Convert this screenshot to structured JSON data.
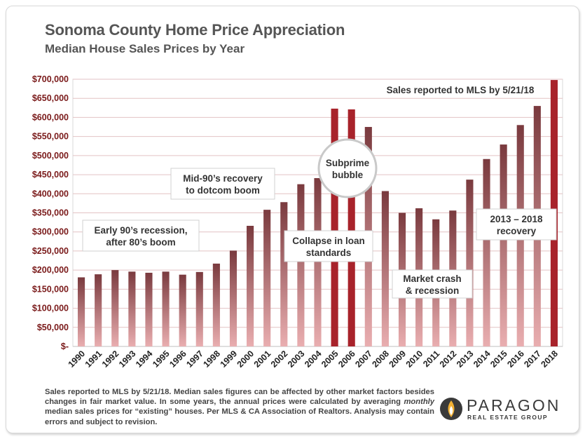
{
  "title": "Sonoma County Home Price Appreciation",
  "subtitle": "Median House Sales Prices by Year",
  "colors": {
    "bar_top": "#7a3a3e",
    "bar_bottom": "#e9aeb0",
    "highlight": "#a8232b",
    "grid": "#e3c2c4",
    "axis_text": "#7a1a1a"
  },
  "chart_data": {
    "type": "bar",
    "categories": [
      "1990",
      "1991",
      "1992",
      "1993",
      "1994",
      "1995",
      "1996",
      "1997",
      "1998",
      "1999",
      "2000",
      "2001",
      "2002",
      "2003",
      "2004",
      "2005",
      "2006",
      "2007",
      "2008",
      "2009",
      "2010",
      "2011",
      "2012",
      "2013",
      "2014",
      "2015",
      "2016",
      "2017",
      "2018"
    ],
    "values": [
      181000,
      189000,
      200000,
      196000,
      193000,
      196000,
      188000,
      195000,
      217000,
      251000,
      316000,
      358000,
      378000,
      425000,
      441000,
      623000,
      621000,
      575000,
      407000,
      350000,
      362000,
      333000,
      356000,
      437000,
      491000,
      529000,
      580000,
      630000,
      698000
    ],
    "highlighted": [
      "2005",
      "2006",
      "2018"
    ],
    "ylim": [
      0,
      700000
    ],
    "yticks": [
      0,
      50000,
      100000,
      150000,
      200000,
      250000,
      300000,
      350000,
      400000,
      450000,
      500000,
      550000,
      600000,
      650000,
      700000
    ],
    "ytick_labels": [
      "$-",
      "$50,000",
      "$100,000",
      "$150,000",
      "$200,000",
      "$250,000",
      "$300,000",
      "$350,000",
      "$400,000",
      "$450,000",
      "$500,000",
      "$550,000",
      "$600,000",
      "$650,000",
      "$700,000"
    ],
    "xlabel": "",
    "ylabel": "",
    "grid": true
  },
  "annotations": {
    "sales_note": "Sales reported to MLS by 5/21/18",
    "early_90s": [
      "Early 90’s recession,",
      "after 80’s boom"
    ],
    "mid_90s": [
      "Mid-90’s recovery",
      "to dotcom boom"
    ],
    "subprime": [
      "Subprime",
      "bubble"
    ],
    "collapse": [
      "Collapse in loan",
      "standards"
    ],
    "crash": [
      "Market crash",
      "& recession"
    ],
    "recovery": [
      "2013 – 2018",
      "recovery"
    ]
  },
  "footnote": {
    "before_italic": "Sales reported to MLS by 5/21/18. Median sales figures can be affected by other market factors besides changes in fair market value. In some years, the annual prices were calculated by averaging ",
    "italic": "monthly",
    "after_italic": " median sales prices for “existing” houses. Per MLS & CA Association of Realtors. Analysis may contain errors and subject to revision."
  },
  "logo": {
    "name": "PARAGON",
    "tagline": "REAL ESTATE GROUP"
  }
}
